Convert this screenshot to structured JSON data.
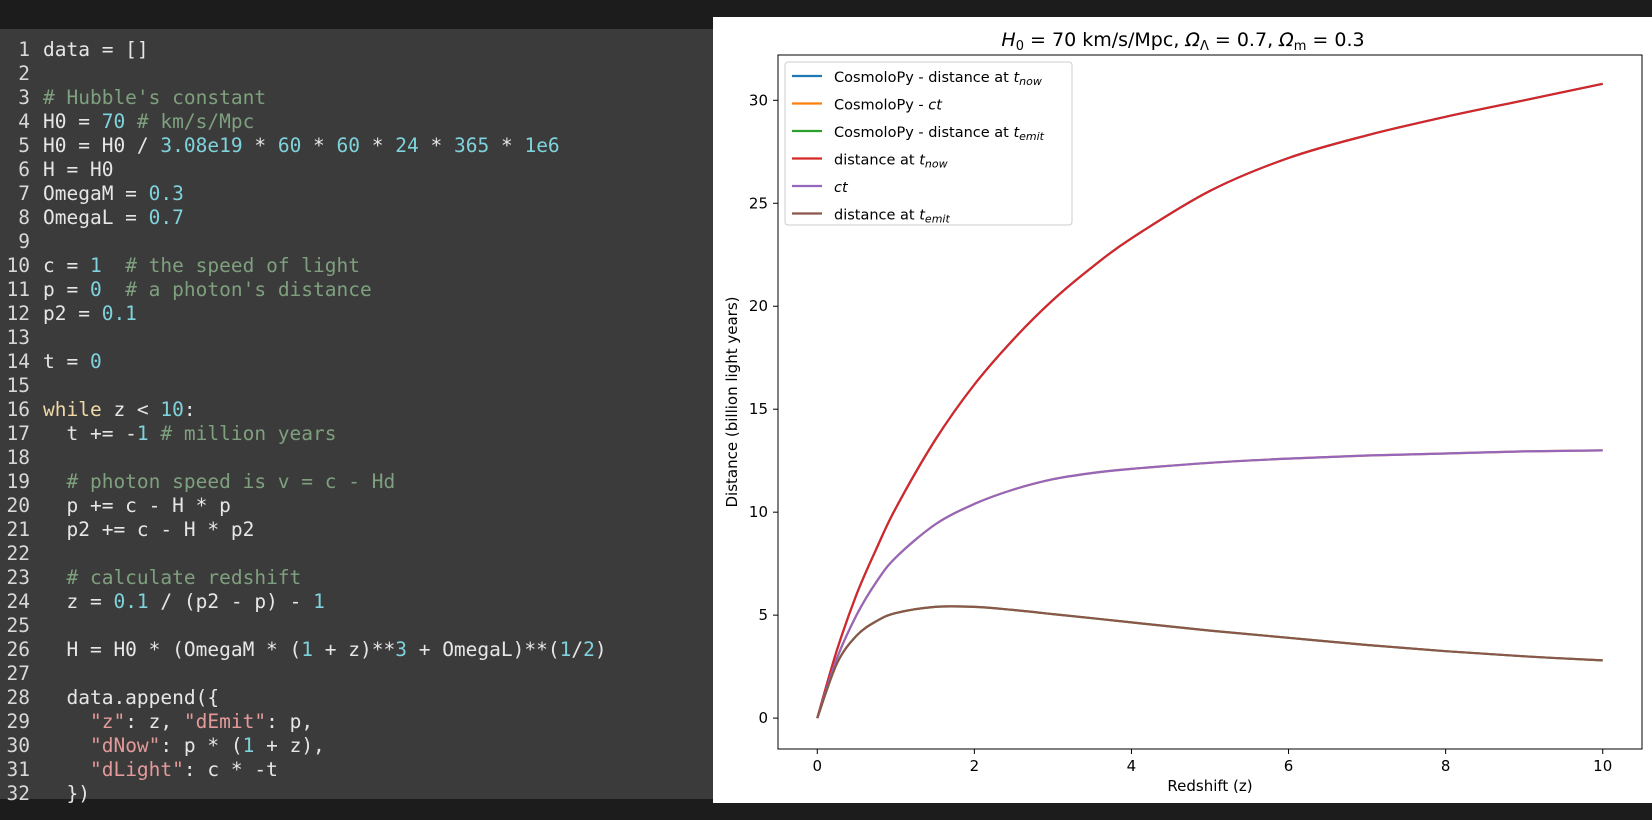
{
  "editor": {
    "lines": [
      {
        "n": "1",
        "tokens": [
          {
            "t": "data = []",
            "c": "plain"
          }
        ]
      },
      {
        "n": "2",
        "tokens": []
      },
      {
        "n": "3",
        "tokens": [
          {
            "t": "# Hubble's constant",
            "c": "comment"
          }
        ]
      },
      {
        "n": "4",
        "tokens": [
          {
            "t": "H0 = ",
            "c": "plain"
          },
          {
            "t": "70",
            "c": "number"
          },
          {
            "t": " # km/s/Mpc",
            "c": "comment"
          }
        ]
      },
      {
        "n": "5",
        "tokens": [
          {
            "t": "H0 = H0 / ",
            "c": "plain"
          },
          {
            "t": "3.08e19",
            "c": "number"
          },
          {
            "t": " * ",
            "c": "plain"
          },
          {
            "t": "60",
            "c": "number"
          },
          {
            "t": " * ",
            "c": "plain"
          },
          {
            "t": "60",
            "c": "number"
          },
          {
            "t": " * ",
            "c": "plain"
          },
          {
            "t": "24",
            "c": "number"
          },
          {
            "t": " * ",
            "c": "plain"
          },
          {
            "t": "365",
            "c": "number"
          },
          {
            "t": " * ",
            "c": "plain"
          },
          {
            "t": "1e6",
            "c": "number"
          }
        ]
      },
      {
        "n": "6",
        "tokens": [
          {
            "t": "H = H0",
            "c": "plain"
          }
        ]
      },
      {
        "n": "7",
        "tokens": [
          {
            "t": "OmegaM = ",
            "c": "plain"
          },
          {
            "t": "0.3",
            "c": "number"
          }
        ]
      },
      {
        "n": "8",
        "tokens": [
          {
            "t": "OmegaL = ",
            "c": "plain"
          },
          {
            "t": "0.7",
            "c": "number"
          }
        ]
      },
      {
        "n": "9",
        "tokens": []
      },
      {
        "n": "10",
        "tokens": [
          {
            "t": "c = ",
            "c": "plain"
          },
          {
            "t": "1",
            "c": "number"
          },
          {
            "t": "  # the speed of light",
            "c": "comment"
          }
        ]
      },
      {
        "n": "11",
        "tokens": [
          {
            "t": "p = ",
            "c": "plain"
          },
          {
            "t": "0",
            "c": "number"
          },
          {
            "t": "  # a photon's distance",
            "c": "comment"
          }
        ]
      },
      {
        "n": "12",
        "tokens": [
          {
            "t": "p2 = ",
            "c": "plain"
          },
          {
            "t": "0.1",
            "c": "number"
          }
        ]
      },
      {
        "n": "13",
        "tokens": []
      },
      {
        "n": "14",
        "tokens": [
          {
            "t": "t = ",
            "c": "plain"
          },
          {
            "t": "0",
            "c": "number"
          }
        ]
      },
      {
        "n": "15",
        "tokens": []
      },
      {
        "n": "16",
        "tokens": [
          {
            "t": "while",
            "c": "keyword"
          },
          {
            "t": " z < ",
            "c": "plain"
          },
          {
            "t": "10",
            "c": "number"
          },
          {
            "t": ":",
            "c": "plain"
          }
        ]
      },
      {
        "n": "17",
        "tokens": [
          {
            "t": "  t += -",
            "c": "plain"
          },
          {
            "t": "1",
            "c": "number"
          },
          {
            "t": " # million years",
            "c": "comment"
          }
        ]
      },
      {
        "n": "18",
        "tokens": []
      },
      {
        "n": "19",
        "tokens": [
          {
            "t": "  ",
            "c": "plain"
          },
          {
            "t": "# photon speed is v = c - Hd",
            "c": "comment"
          }
        ]
      },
      {
        "n": "20",
        "tokens": [
          {
            "t": "  p += c - H * p",
            "c": "plain"
          }
        ]
      },
      {
        "n": "21",
        "tokens": [
          {
            "t": "  p2 += c - H * p2",
            "c": "plain"
          }
        ]
      },
      {
        "n": "22",
        "tokens": []
      },
      {
        "n": "23",
        "tokens": [
          {
            "t": "  ",
            "c": "plain"
          },
          {
            "t": "# calculate redshift",
            "c": "comment"
          }
        ]
      },
      {
        "n": "24",
        "tokens": [
          {
            "t": "  z = ",
            "c": "plain"
          },
          {
            "t": "0.1",
            "c": "number"
          },
          {
            "t": " / (p2 - p) - ",
            "c": "plain"
          },
          {
            "t": "1",
            "c": "number"
          }
        ]
      },
      {
        "n": "25",
        "tokens": []
      },
      {
        "n": "26",
        "tokens": [
          {
            "t": "  H = H0 * (OmegaM * (",
            "c": "plain"
          },
          {
            "t": "1",
            "c": "number"
          },
          {
            "t": " + z)**",
            "c": "plain"
          },
          {
            "t": "3",
            "c": "number"
          },
          {
            "t": " + OmegaL)**(",
            "c": "plain"
          },
          {
            "t": "1",
            "c": "number"
          },
          {
            "t": "/",
            "c": "plain"
          },
          {
            "t": "2",
            "c": "number"
          },
          {
            "t": ")",
            "c": "plain"
          }
        ]
      },
      {
        "n": "27",
        "tokens": []
      },
      {
        "n": "28",
        "tokens": [
          {
            "t": "  data.append({",
            "c": "plain"
          }
        ]
      },
      {
        "n": "29",
        "tokens": [
          {
            "t": "    ",
            "c": "plain"
          },
          {
            "t": "\"z\"",
            "c": "string"
          },
          {
            "t": ": z, ",
            "c": "plain"
          },
          {
            "t": "\"dEmit\"",
            "c": "string"
          },
          {
            "t": ": p,",
            "c": "plain"
          }
        ]
      },
      {
        "n": "30",
        "tokens": [
          {
            "t": "    ",
            "c": "plain"
          },
          {
            "t": "\"dNow\"",
            "c": "string"
          },
          {
            "t": ": p * (",
            "c": "plain"
          },
          {
            "t": "1",
            "c": "number"
          },
          {
            "t": " + z),",
            "c": "plain"
          }
        ]
      },
      {
        "n": "31",
        "tokens": [
          {
            "t": "    ",
            "c": "plain"
          },
          {
            "t": "\"dLight\"",
            "c": "string"
          },
          {
            "t": ": c * -t",
            "c": "plain"
          }
        ]
      },
      {
        "n": "32",
        "tokens": [
          {
            "t": "  })",
            "c": "plain"
          }
        ]
      }
    ]
  },
  "chart_data": {
    "type": "line",
    "title": "H0 = 70 km/s/Mpc, ΩΛ = 0.7, Ωm = 0.3",
    "xlabel": "Redshift (z)",
    "ylabel": "Distance (billion light years)",
    "xlim": [
      -0.5,
      10.5
    ],
    "ylim": [
      -1.5,
      32.2
    ],
    "xticks": [
      0,
      2,
      4,
      6,
      8,
      10
    ],
    "yticks": [
      0,
      5,
      10,
      15,
      20,
      25,
      30
    ],
    "grid": false,
    "legend_position": "top-left",
    "x": [
      0,
      0.25,
      0.5,
      0.75,
      1,
      1.5,
      2,
      2.5,
      3,
      3.5,
      4,
      5,
      6,
      7,
      8,
      9,
      10
    ],
    "series": [
      {
        "name": "CosmoloPy - distance at t_now",
        "color": "#1f77b4",
        "values": [
          0,
          3.3,
          6.0,
          8.2,
          10.2,
          13.5,
          16.2,
          18.4,
          20.3,
          21.9,
          23.3,
          25.6,
          27.2,
          28.3,
          29.2,
          30.0,
          30.8
        ]
      },
      {
        "name": "CosmoloPy - ct",
        "color": "#ff7f0e",
        "values": [
          0,
          2.9,
          5.0,
          6.6,
          7.8,
          9.4,
          10.4,
          11.1,
          11.6,
          11.9,
          12.1,
          12.4,
          12.6,
          12.75,
          12.85,
          12.95,
          13.0
        ]
      },
      {
        "name": "CosmoloPy - distance at t_emit",
        "color": "#2ca02c",
        "values": [
          0,
          2.65,
          4.0,
          4.7,
          5.1,
          5.4,
          5.4,
          5.25,
          5.05,
          4.85,
          4.65,
          4.25,
          3.9,
          3.55,
          3.25,
          3.0,
          2.8
        ]
      },
      {
        "name": "distance at t_now",
        "color": "#d62728",
        "values": [
          0,
          3.3,
          6.0,
          8.2,
          10.2,
          13.5,
          16.2,
          18.4,
          20.3,
          21.9,
          23.3,
          25.6,
          27.2,
          28.3,
          29.2,
          30.0,
          30.8
        ]
      },
      {
        "name": "ct",
        "color": "#9467bd",
        "values": [
          0,
          2.9,
          5.0,
          6.6,
          7.8,
          9.4,
          10.4,
          11.1,
          11.6,
          11.9,
          12.1,
          12.4,
          12.6,
          12.75,
          12.85,
          12.95,
          13.0
        ]
      },
      {
        "name": "distance at t_emit",
        "color": "#8c564b",
        "values": [
          0,
          2.65,
          4.0,
          4.7,
          5.1,
          5.4,
          5.4,
          5.25,
          5.05,
          4.85,
          4.65,
          4.25,
          3.9,
          3.55,
          3.25,
          3.0,
          2.8
        ]
      }
    ],
    "legend": [
      {
        "text": "CosmoloPy - distance at ",
        "sub_base": "t",
        "sub": "now",
        "color": "#1f77b4"
      },
      {
        "text": "CosmoloPy - ",
        "sub_base": "ct",
        "sub": "",
        "color": "#ff7f0e"
      },
      {
        "text": "CosmoloPy - distance at ",
        "sub_base": "t",
        "sub": "emit",
        "color": "#2ca02c"
      },
      {
        "text": "distance at ",
        "sub_base": "t",
        "sub": "now",
        "color": "#d62728"
      },
      {
        "text": "",
        "sub_base": "ct",
        "sub": "",
        "color": "#9467bd"
      },
      {
        "text": "distance at ",
        "sub_base": "t",
        "sub": "emit",
        "color": "#8c564b"
      }
    ]
  }
}
